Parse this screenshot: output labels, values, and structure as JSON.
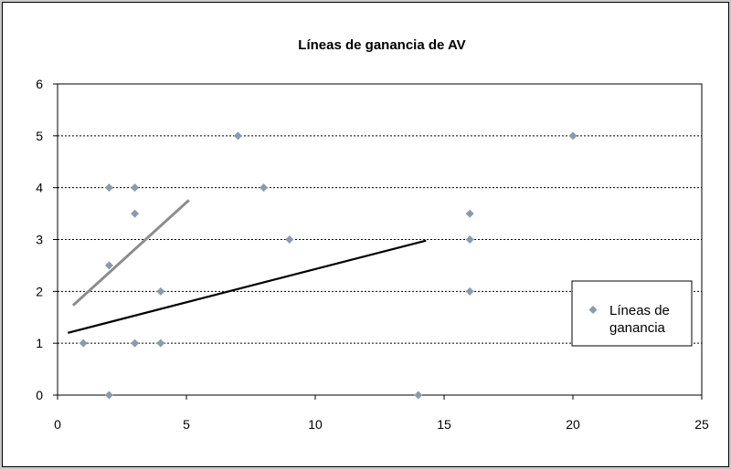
{
  "chart_data": {
    "type": "scatter",
    "title": "Líneas de ganancia de AV",
    "xlabel": "",
    "ylabel": "",
    "xlim": [
      0,
      25
    ],
    "ylim": [
      0,
      6
    ],
    "xticks": [
      0,
      5,
      10,
      15,
      20,
      25
    ],
    "yticks": [
      0,
      1,
      2,
      3,
      4,
      5,
      6
    ],
    "grid": "horizontal-dotted",
    "legend": {
      "placement": "right",
      "entries": [
        "Líneas de ganancia"
      ]
    },
    "series": [
      {
        "name": "Líneas de ganancia",
        "color": "#8a9ab0",
        "marker": "diamond",
        "points": [
          [
            1,
            1
          ],
          [
            2,
            0
          ],
          [
            2,
            2.5
          ],
          [
            2,
            4
          ],
          [
            3,
            1
          ],
          [
            3,
            3.5
          ],
          [
            3,
            4
          ],
          [
            4,
            1
          ],
          [
            4,
            2
          ],
          [
            7,
            5
          ],
          [
            8,
            4
          ],
          [
            9,
            3
          ],
          [
            14,
            0
          ],
          [
            16,
            2
          ],
          [
            16,
            3
          ],
          [
            16,
            3.5
          ],
          [
            20,
            5
          ]
        ]
      }
    ],
    "lines": [
      {
        "color": "#000000",
        "from": [
          0.4,
          1.2
        ],
        "to": [
          14.3,
          2.98
        ]
      },
      {
        "color": "#8c8c8c",
        "from": [
          0.6,
          1.73
        ],
        "to": [
          5.1,
          3.76
        ]
      }
    ]
  }
}
